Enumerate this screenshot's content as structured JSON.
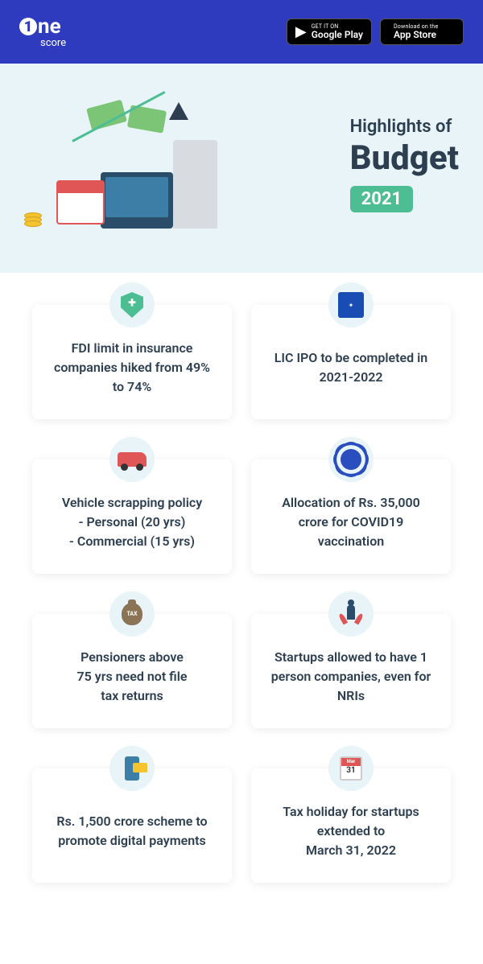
{
  "header": {
    "logo_main": "ne",
    "logo_sub": "score",
    "google_small": "GET IT ON",
    "google_big": "Google Play",
    "apple_small": "Download on the",
    "apple_big": "App Store"
  },
  "hero": {
    "line1": "Highlights of",
    "line2": "Budget",
    "badge": "2021",
    "colors": {
      "hero_bg": "#e8f4f8",
      "badge_bg": "#4dbd94",
      "header_bg": "#2e3bbf"
    }
  },
  "cards": [
    {
      "icon": "shield-icon",
      "text": "FDI limit in insurance companies hiked from 49% to 74%"
    },
    {
      "icon": "lic-icon",
      "text": "LIC IPO to be completed in 2021-2022"
    },
    {
      "icon": "car-icon",
      "text": "Vehicle scrapping policy\n- Personal (20 yrs)\n- Commercial (15 yrs)"
    },
    {
      "icon": "virus-icon",
      "text": "Allocation of Rs. 35,000 crore for COVID19 vaccination"
    },
    {
      "icon": "tax-icon",
      "text": "Pensioners above\n75 yrs need not file\ntax returns"
    },
    {
      "icon": "startup-icon",
      "text": "Startups allowed to have 1 person companies, even for NRIs"
    },
    {
      "icon": "phone-icon",
      "text": "Rs. 1,500 crore scheme to promote digital payments"
    },
    {
      "icon": "calendar-icon",
      "text": "Tax holiday for startups extended to\nMarch 31, 2022"
    }
  ],
  "calendar_day": "31"
}
